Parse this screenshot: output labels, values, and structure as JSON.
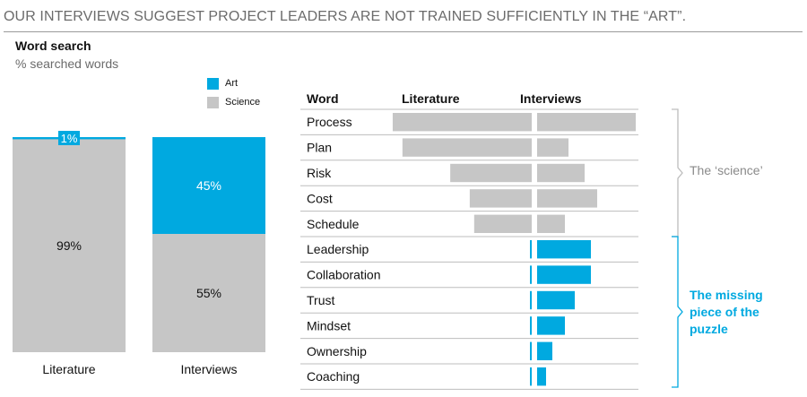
{
  "headline": "OUR INTERVIEWS SUGGEST PROJECT LEADERS ARE NOT TRAINED SUFFICIENTLY IN THE “ART”.",
  "panel": {
    "title": "Word search",
    "subtitle": "% searched words"
  },
  "colors": {
    "art": "#00a9e0",
    "science": "#c6c6c6",
    "bracket_science": "#bdbdbd",
    "bracket_art": "#00a9e0"
  },
  "legend": [
    {
      "name": "Art",
      "color": "#00a9e0"
    },
    {
      "name": "Science",
      "color": "#c6c6c6"
    }
  ],
  "chart_data": [
    {
      "type": "bar",
      "stacked": true,
      "categories": [
        "Literature",
        "Interviews"
      ],
      "series": [
        {
          "name": "Art",
          "values": [
            1,
            45
          ],
          "labels": [
            "1%",
            "45%"
          ]
        },
        {
          "name": "Science",
          "values": [
            99,
            55
          ],
          "labels": [
            "99%",
            "55%"
          ]
        }
      ],
      "ylim": [
        0,
        100
      ]
    },
    {
      "type": "bar",
      "orientation": "horizontal",
      "column_headers": {
        "word": "Word",
        "literature": "Literature",
        "interviews": "Interviews"
      },
      "categories": [
        "Process",
        "Plan",
        "Risk",
        "Cost",
        "Schedule",
        "Leadership",
        "Collaboration",
        "Trust",
        "Mindset",
        "Ownership",
        "Coaching"
      ],
      "groups": [
        "science",
        "science",
        "science",
        "science",
        "science",
        "art",
        "art",
        "art",
        "art",
        "art",
        "art"
      ],
      "series": [
        {
          "name": "Literature",
          "values": [
            157,
            146,
            92,
            70,
            65,
            2,
            2,
            2,
            2,
            2,
            2
          ]
        },
        {
          "name": "Interviews",
          "values": [
            110,
            35,
            53,
            67,
            31,
            60,
            60,
            42,
            31,
            17,
            10
          ]
        }
      ],
      "annotations": {
        "science": "The ‘science’",
        "art": "The missing piece of the puzzle"
      }
    }
  ]
}
